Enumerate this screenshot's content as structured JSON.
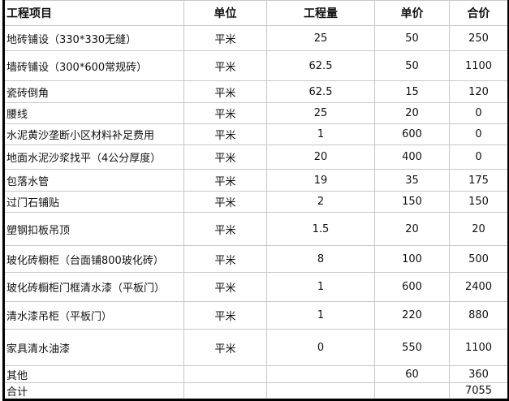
{
  "headers": [
    "工程项目",
    "单位",
    "工程量",
    "单价",
    "合价"
  ],
  "rows": [
    [
      "地砖铺设（330*330无缝）",
      "平米",
      "25",
      "50",
      "250"
    ],
    [
      "墙砖铺设（300*600常规砖）",
      "平米",
      "62.5",
      "50",
      "1100"
    ],
    [
      "瓷砖倒角",
      "平米",
      "62.5",
      "15",
      "120"
    ],
    [
      "腰线",
      "平米",
      "25",
      "20",
      "0"
    ],
    [
      "水泥黄沙垄断小区材料补足费用",
      "平米",
      "1",
      "600",
      "0"
    ],
    [
      "地面水泥沙浆找平（4公分厚度）",
      "平米",
      "20",
      "400",
      "0"
    ],
    [
      "包落水管",
      "平米",
      "19",
      "35",
      "175"
    ],
    [
      "过门石铺贴",
      "平米",
      "2",
      "150",
      "150"
    ],
    [
      "塑钢扣板吊顶",
      "平米",
      "1.5",
      "20",
      "20"
    ],
    [
      "玻化砖橱柜（台面铺800玻化砖）",
      "平米",
      "8",
      "100",
      "500"
    ],
    [
      "玻化砖橱柜门框清水漆（平板门）",
      "平米",
      "1",
      "600",
      "2400"
    ],
    [
      "清水漆吊柜（平板门）",
      "平米",
      "1",
      "220",
      "880"
    ],
    [
      "家具清水油漆",
      "平米",
      "0",
      "550",
      "1100"
    ],
    [
      "其他",
      "",
      "",
      "60",
      "360"
    ],
    [
      "合计",
      "",
      "",
      "",
      "7055"
    ]
  ]
}
